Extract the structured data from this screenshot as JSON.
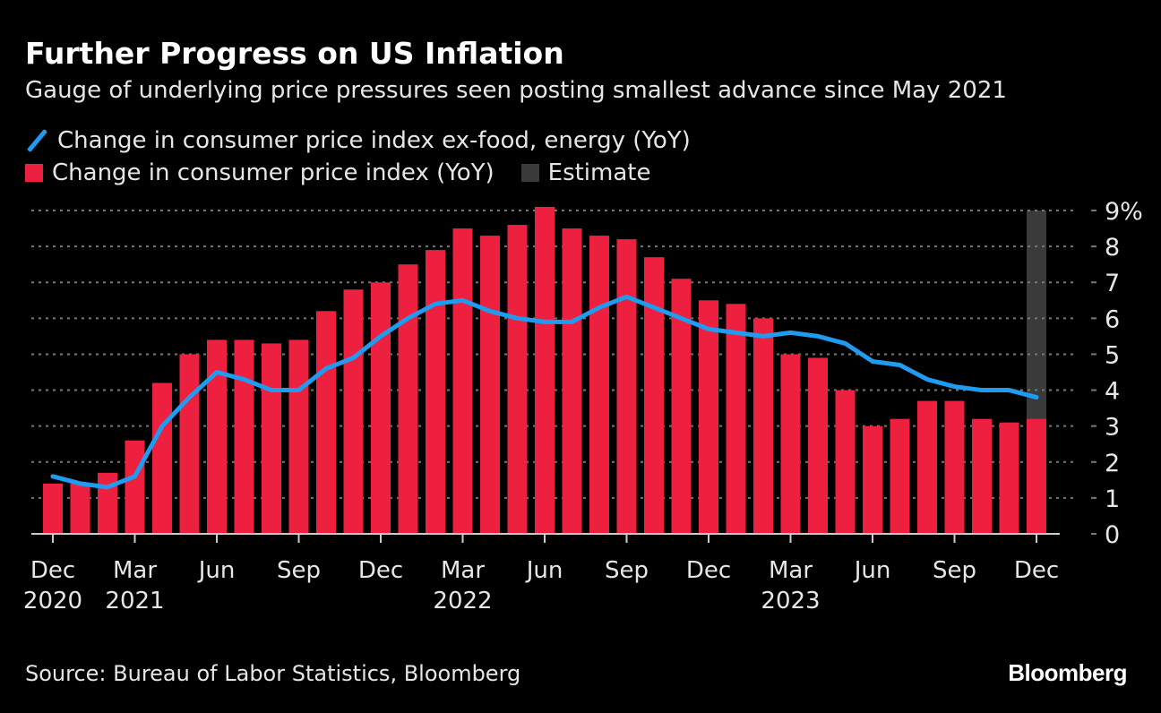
{
  "chart_data": {
    "type": "bar",
    "title": "Further Progress on US Inflation",
    "subtitle": "Gauge of underlying price pressures seen posting smallest advance since May 2021",
    "categories": [
      "Dec 2020",
      "Jan 2021",
      "Feb 2021",
      "Mar 2021",
      "Apr 2021",
      "May 2021",
      "Jun 2021",
      "Jul 2021",
      "Aug 2021",
      "Sep 2021",
      "Oct 2021",
      "Nov 2021",
      "Dec 2021",
      "Jan 2022",
      "Feb 2022",
      "Mar 2022",
      "Apr 2022",
      "May 2022",
      "Jun 2022",
      "Jul 2022",
      "Aug 2022",
      "Sep 2022",
      "Oct 2022",
      "Nov 2022",
      "Dec 2022",
      "Jan 2023",
      "Feb 2023",
      "Mar 2023",
      "Apr 2023",
      "May 2023",
      "Jun 2023",
      "Jul 2023",
      "Aug 2023",
      "Sep 2023",
      "Oct 2023",
      "Nov 2023",
      "Dec 2023"
    ],
    "series": [
      {
        "name": "Change in consumer price index (YoY)",
        "type": "bar",
        "color": "#ee203f",
        "values": [
          1.4,
          1.4,
          1.7,
          2.6,
          4.2,
          5.0,
          5.4,
          5.4,
          5.3,
          5.4,
          6.2,
          6.8,
          7.0,
          7.5,
          7.9,
          8.5,
          8.3,
          8.6,
          9.1,
          8.5,
          8.3,
          8.2,
          7.7,
          7.1,
          6.5,
          6.4,
          6.0,
          5.0,
          4.9,
          4.0,
          3.0,
          3.2,
          3.7,
          3.7,
          3.2,
          3.1,
          3.2
        ]
      },
      {
        "name": "Change in consumer price index ex-food, energy (YoY)",
        "type": "line",
        "color": "#1f9bf0",
        "values": [
          1.6,
          1.4,
          1.3,
          1.6,
          3.0,
          3.8,
          4.5,
          4.3,
          4.0,
          4.0,
          4.6,
          4.9,
          5.5,
          6.0,
          6.4,
          6.5,
          6.2,
          6.0,
          5.9,
          5.9,
          6.3,
          6.6,
          6.3,
          6.0,
          5.7,
          5.6,
          5.5,
          5.6,
          5.5,
          5.3,
          4.8,
          4.7,
          4.3,
          4.1,
          4.0,
          4.0,
          3.8
        ]
      }
    ],
    "estimate": {
      "label": "Estimate",
      "categories": [
        "Dec 2023"
      ],
      "color": "#3a3a3a"
    },
    "x_ticks": [
      {
        "category": "Dec 2020",
        "month": "Dec",
        "year": "2020"
      },
      {
        "category": "Mar 2021",
        "month": "Mar",
        "year": "2021"
      },
      {
        "category": "Jun 2021",
        "month": "Jun",
        "year": ""
      },
      {
        "category": "Sep 2021",
        "month": "Sep",
        "year": ""
      },
      {
        "category": "Dec 2021",
        "month": "Dec",
        "year": ""
      },
      {
        "category": "Mar 2022",
        "month": "Mar",
        "year": "2022"
      },
      {
        "category": "Jun 2022",
        "month": "Jun",
        "year": ""
      },
      {
        "category": "Sep 2022",
        "month": "Sep",
        "year": ""
      },
      {
        "category": "Dec 2022",
        "month": "Dec",
        "year": ""
      },
      {
        "category": "Mar 2023",
        "month": "Mar",
        "year": "2023"
      },
      {
        "category": "Jun 2023",
        "month": "Jun",
        "year": ""
      },
      {
        "category": "Sep 2023",
        "month": "Sep",
        "year": ""
      },
      {
        "category": "Dec 2023",
        "month": "Dec",
        "year": ""
      }
    ],
    "y_ticks": [
      "0",
      "1",
      "2",
      "3",
      "4",
      "5",
      "6",
      "7",
      "8",
      "9%"
    ],
    "ylim": [
      0,
      9
    ],
    "y_axis_side": "right",
    "grid": true,
    "legend_placement": "top-left"
  },
  "legend": {
    "line_label": "Change in consumer price index ex-food, energy (YoY)",
    "bar_label": "Change in consumer price index (YoY)",
    "estimate_label": "Estimate"
  },
  "footer": {
    "source": "Source: Bureau of Labor Statistics, Bloomberg",
    "logo": "Bloomberg"
  }
}
